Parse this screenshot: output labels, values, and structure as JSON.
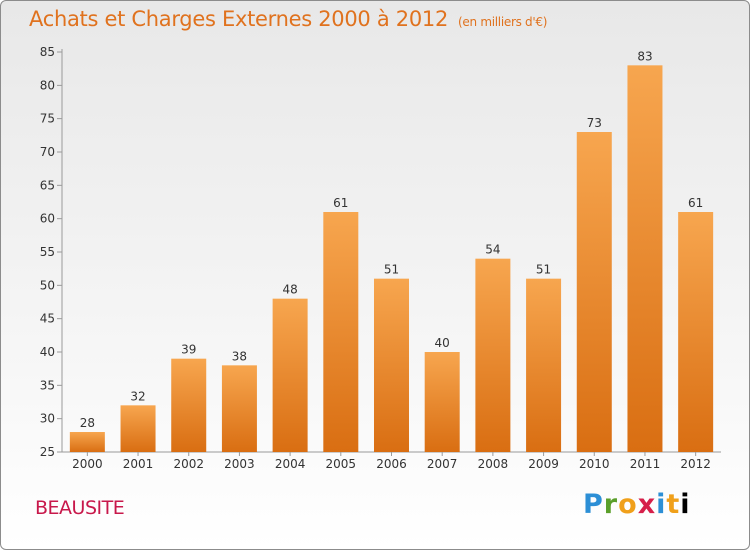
{
  "title": "Achats et Charges Externes 2000 à 2012",
  "unit_note": "(en milliers d'€)",
  "commune": "BEAUSITE",
  "logo_text": "Proxiti",
  "colors": {
    "title": "#e0721e",
    "commune": "#c8184b",
    "bar_light": "#f7a64f",
    "bar_dark": "#d96e12"
  },
  "chart_data": {
    "type": "bar",
    "title": "Achats et Charges Externes 2000 à 2012",
    "subtitle": "(en milliers d'€)",
    "categories": [
      "2000",
      "2001",
      "2002",
      "2003",
      "2004",
      "2005",
      "2006",
      "2007",
      "2008",
      "2009",
      "2010",
      "2011",
      "2012"
    ],
    "values": [
      28,
      32,
      39,
      38,
      48,
      61,
      51,
      40,
      54,
      51,
      73,
      83,
      61
    ],
    "ylim": [
      25,
      85
    ],
    "yticks": [
      25,
      30,
      35,
      40,
      45,
      50,
      55,
      60,
      65,
      70,
      75,
      80,
      85
    ],
    "grid": false,
    "data_labels": true
  }
}
